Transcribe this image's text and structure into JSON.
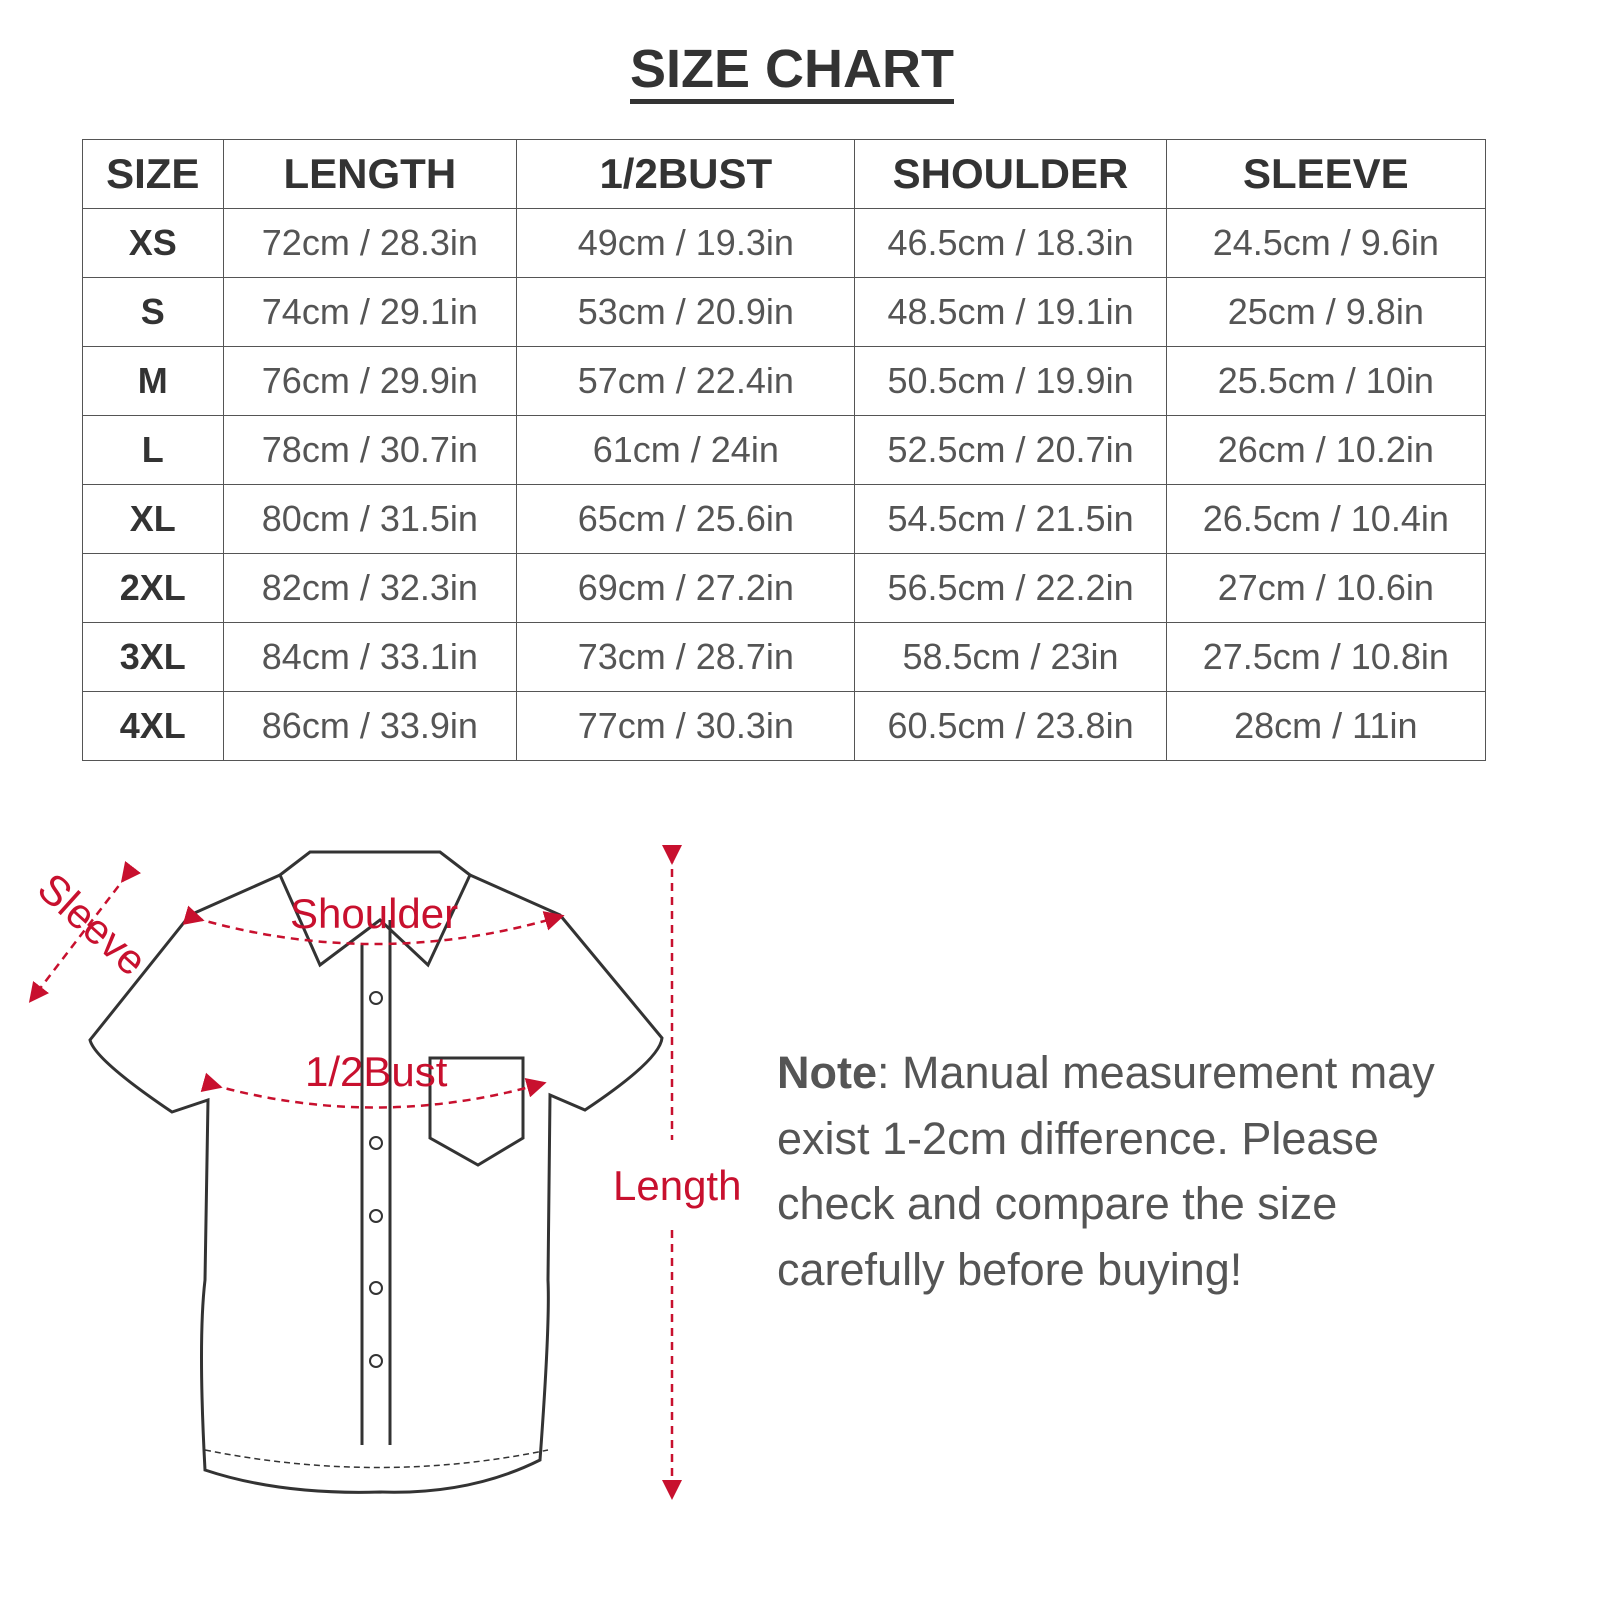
{
  "title": "SIZE CHART",
  "table": {
    "headers": [
      "SIZE",
      "LENGTH",
      "1/2BUST",
      "SHOULDER",
      "SLEEVE"
    ],
    "rows": [
      [
        "XS",
        "72cm / 28.3in",
        "49cm / 19.3in",
        "46.5cm / 18.3in",
        "24.5cm / 9.6in"
      ],
      [
        "S",
        "74cm / 29.1in",
        "53cm / 20.9in",
        "48.5cm / 19.1in",
        "25cm / 9.8in"
      ],
      [
        "M",
        "76cm / 29.9in",
        "57cm / 22.4in",
        "50.5cm / 19.9in",
        "25.5cm / 10in"
      ],
      [
        "L",
        "78cm / 30.7in",
        "61cm / 24in",
        "52.5cm / 20.7in",
        "26cm / 10.2in"
      ],
      [
        "XL",
        "80cm / 31.5in",
        "65cm / 25.6in",
        "54.5cm / 21.5in",
        "26.5cm / 10.4in"
      ],
      [
        "2XL",
        "82cm / 32.3in",
        "69cm / 27.2in",
        "56.5cm / 22.2in",
        "27cm / 10.6in"
      ],
      [
        "3XL",
        "84cm / 33.1in",
        "73cm / 28.7in",
        "58.5cm / 23in",
        "27.5cm / 10.8in"
      ],
      [
        "4XL",
        "86cm / 33.9in",
        "77cm / 30.3in",
        "60.5cm / 23.8in",
        "28cm / 11in"
      ]
    ]
  },
  "diagram": {
    "labels": {
      "sleeve": "Sleeve",
      "shoulder": "Shoulder",
      "bust": "1/2Bust",
      "length": "Length"
    },
    "accent_color": "#c8102e"
  },
  "note": {
    "bold": "Note",
    "text": ": Manual measurement may exist 1-2cm difference. Please check and compare the size carefully before buying!"
  }
}
